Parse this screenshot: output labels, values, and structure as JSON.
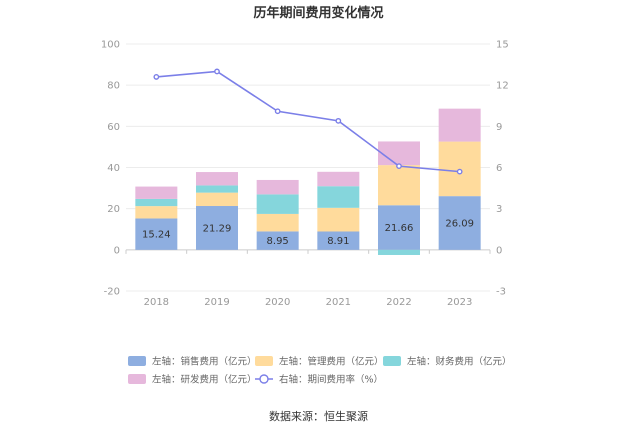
{
  "chart_data": {
    "type": "bar",
    "title": "历年期间费用变化情况",
    "categories": [
      "2018",
      "2019",
      "2020",
      "2021",
      "2022",
      "2023"
    ],
    "left_axis": {
      "min": -20,
      "max": 100,
      "ticks": [
        "-20",
        "0",
        "20",
        "40",
        "60",
        "80",
        "100"
      ]
    },
    "right_axis": {
      "min": -3,
      "max": 15,
      "ticks": [
        "-3",
        "0",
        "3",
        "6",
        "9",
        "12",
        "15"
      ]
    },
    "series": [
      {
        "name": "左轴：销售费用（亿元）",
        "color": "#8eaee0",
        "values": [
          15.24,
          21.29,
          8.95,
          8.91,
          21.66,
          26.09
        ],
        "labels": [
          "15.24",
          "21.29",
          "8.95",
          "8.91",
          "21.66",
          "26.09"
        ]
      },
      {
        "name": "左轴：管理费用（亿元）",
        "color": "#ffdb9c",
        "values": [
          6.0,
          6.5,
          8.5,
          11.5,
          19.5,
          26.5
        ]
      },
      {
        "name": "左轴：财务费用（亿元）",
        "color": "#85d6dc",
        "values": [
          3.5,
          3.5,
          9.5,
          10.5,
          -2.5,
          0.0
        ]
      },
      {
        "name": "左轴：研发费用（亿元）",
        "color": "#e6b8dc",
        "values": [
          6.0,
          6.5,
          7.0,
          7.0,
          11.5,
          16.0
        ]
      },
      {
        "name": "右轴：期间费用率（%）",
        "color": "#7b7fe8",
        "type": "line",
        "axis": "right",
        "values": [
          12.6,
          13.0,
          10.1,
          9.4,
          6.1,
          5.7
        ]
      }
    ],
    "source": "数据来源：恒生聚源"
  }
}
